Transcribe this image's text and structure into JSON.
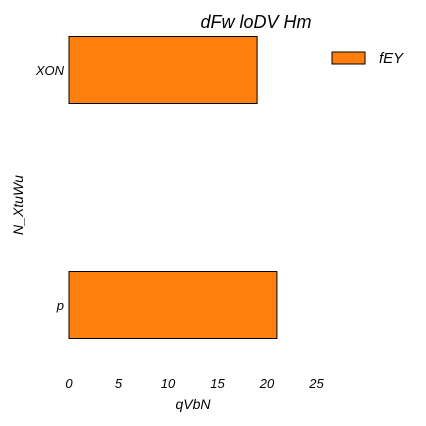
{
  "chart_data": {
    "type": "bar",
    "orientation": "horizontal",
    "title": "dFw loDV Hm",
    "xlabel": "qVbN",
    "ylabel": "N_XtuWu",
    "categories": [
      "XON",
      "p"
    ],
    "series": [
      {
        "name": "fEY",
        "values": [
          19,
          21
        ]
      }
    ],
    "xlim": [
      0,
      25
    ],
    "xticks": [
      0,
      5,
      10,
      15,
      20,
      25
    ],
    "grid": false,
    "legend_position": "top-right",
    "colors": {
      "bar": "#ff7f0e",
      "bar_edge": "#000000"
    }
  }
}
